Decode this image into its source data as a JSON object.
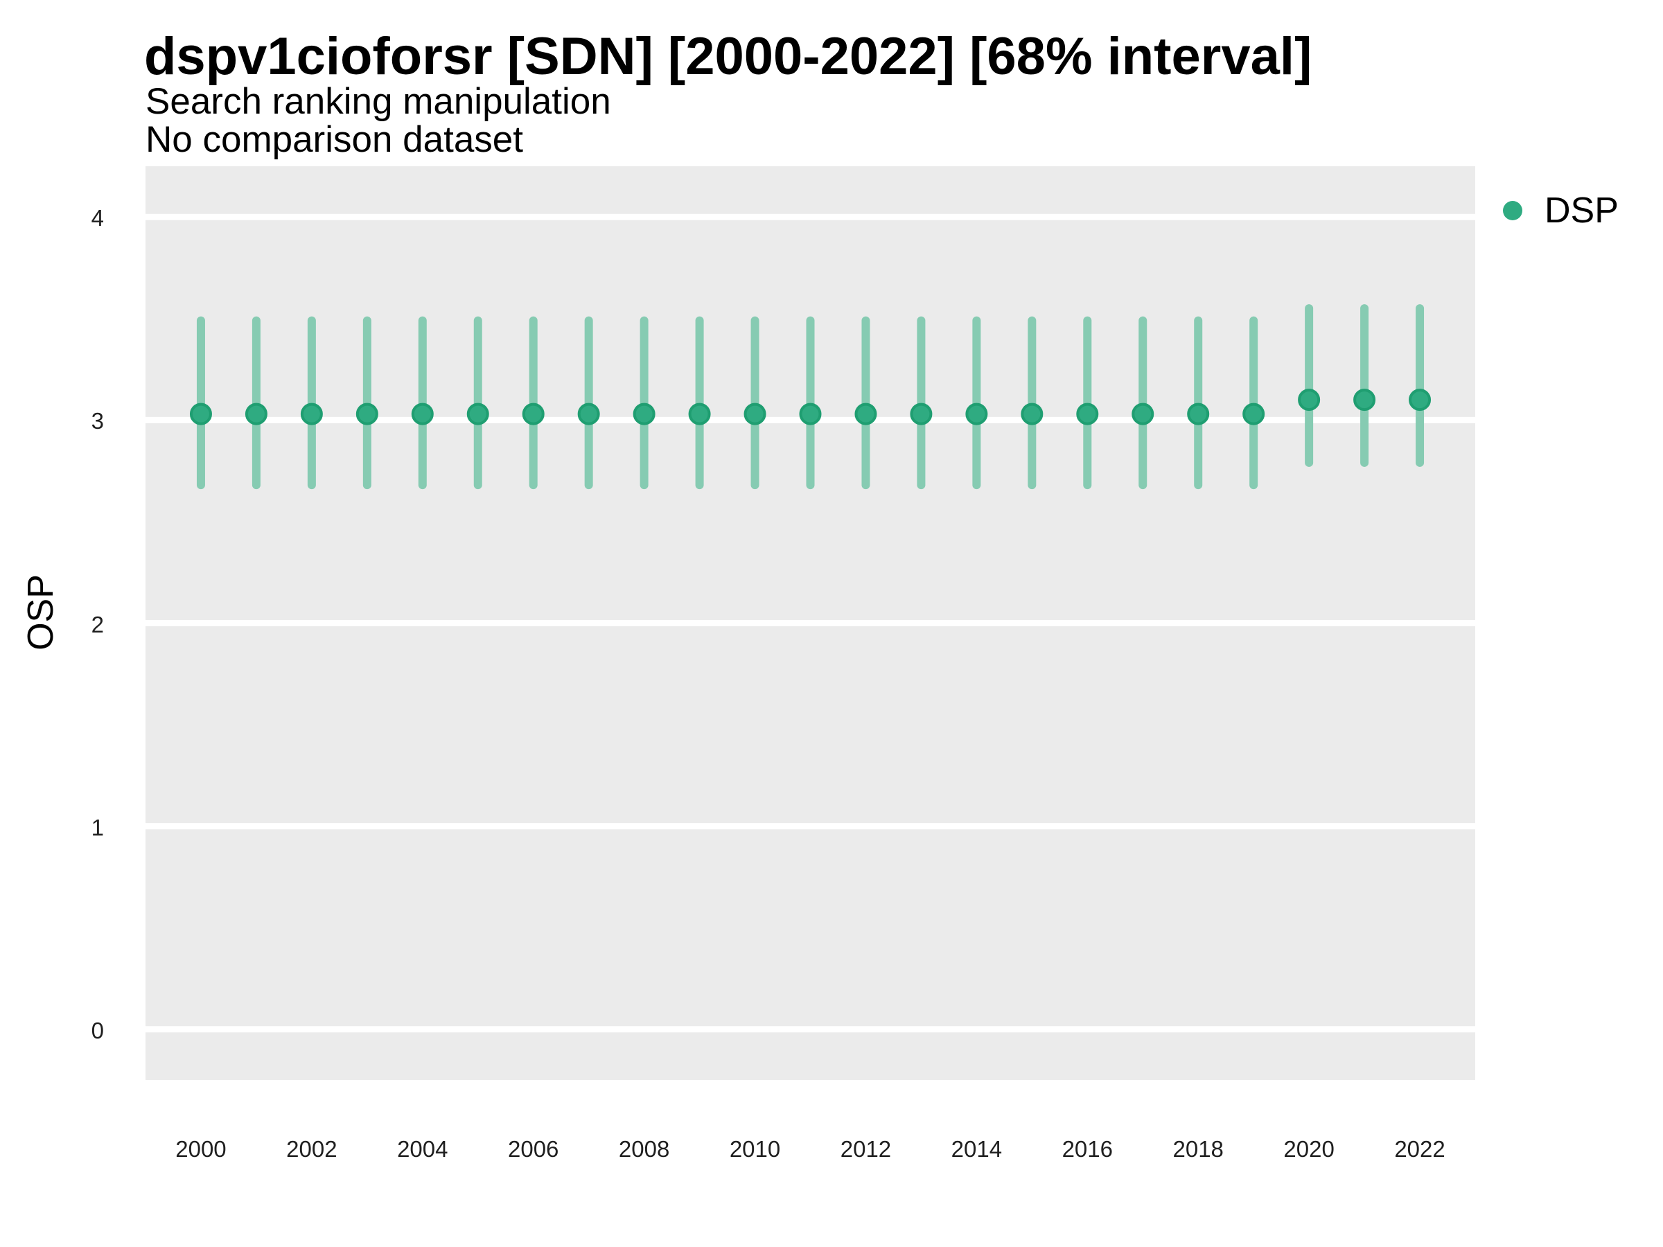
{
  "header": {
    "title": "dspv1cioforsr [SDN] [2000-2022] [68% interval]",
    "subtitle": "Search ranking manipulation",
    "note": "No comparison dataset"
  },
  "legend": {
    "position": "right",
    "items": [
      {
        "label": "DSP",
        "swatch": "circle"
      }
    ]
  },
  "colors": {
    "panel_background": "#ebebeb",
    "gridline": "#ffffff",
    "point_fill": "#2fab81",
    "point_stroke": "#1f9e71",
    "interval_bar": "#86cbb2",
    "title_text": "#000000",
    "tick_text": "#1f1f1f"
  },
  "chart_data": {
    "type": "pointrange",
    "title": "dspv1cioforsr [SDN] [2000-2022] [68% interval]",
    "subtitle": "Search ranking manipulation",
    "note": "No comparison dataset",
    "interval": "68%",
    "xlabel": "",
    "ylabel": "OSP",
    "xlim": [
      1999,
      2023
    ],
    "ylim": [
      -0.25,
      4.25
    ],
    "xticks": [
      2000,
      2002,
      2004,
      2006,
      2008,
      2010,
      2012,
      2014,
      2016,
      2018,
      2020,
      2022
    ],
    "yticks": [
      0,
      1,
      2,
      3,
      4
    ],
    "grid": "major-horizontal-only",
    "legend_position": "right",
    "series": [
      {
        "name": "DSP",
        "x": [
          2000,
          2001,
          2002,
          2003,
          2004,
          2005,
          2006,
          2007,
          2008,
          2009,
          2010,
          2011,
          2012,
          2013,
          2014,
          2015,
          2016,
          2017,
          2018,
          2019,
          2020,
          2021,
          2022
        ],
        "est": [
          3.03,
          3.03,
          3.03,
          3.03,
          3.03,
          3.03,
          3.03,
          3.03,
          3.03,
          3.03,
          3.03,
          3.03,
          3.03,
          3.03,
          3.03,
          3.03,
          3.03,
          3.03,
          3.03,
          3.03,
          3.1,
          3.1,
          3.1
        ],
        "lo": [
          2.68,
          2.68,
          2.68,
          2.68,
          2.68,
          2.68,
          2.68,
          2.68,
          2.68,
          2.68,
          2.68,
          2.68,
          2.68,
          2.68,
          2.68,
          2.68,
          2.68,
          2.68,
          2.68,
          2.68,
          2.79,
          2.79,
          2.79
        ],
        "hi": [
          3.49,
          3.49,
          3.49,
          3.49,
          3.49,
          3.49,
          3.49,
          3.49,
          3.49,
          3.49,
          3.49,
          3.49,
          3.49,
          3.49,
          3.49,
          3.49,
          3.49,
          3.49,
          3.49,
          3.49,
          3.55,
          3.55,
          3.55
        ]
      }
    ]
  }
}
